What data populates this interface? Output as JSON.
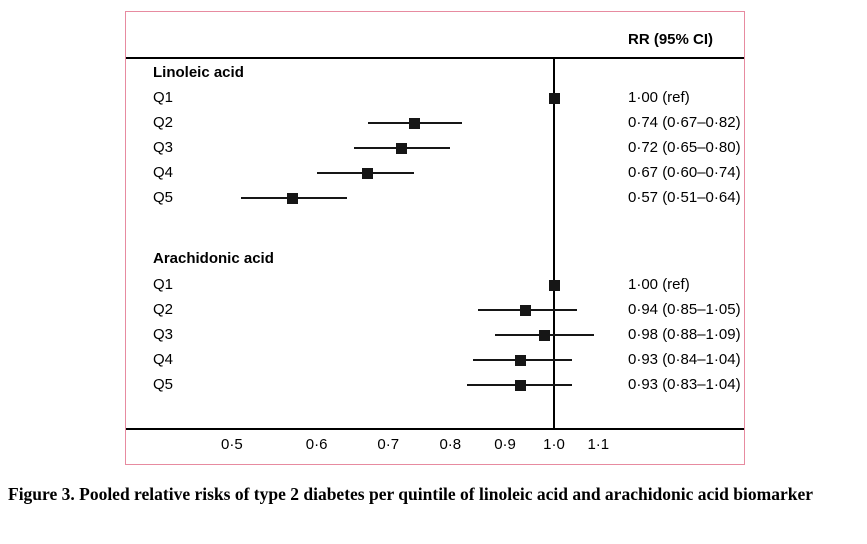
{
  "figure": {
    "header": "RR (95% CI)",
    "caption": "Figure 3. Pooled relative risks of type 2 diabetes per quintile of linoleic acid and arachidonic acid biomarker"
  },
  "colors": {
    "box_border": "#e78ba0",
    "marker": "#161616",
    "line": "#000000"
  },
  "chart_data": {
    "type": "forest",
    "x_scale": "log",
    "column_header": "RR (95% CI)",
    "x_axis": {
      "reference_line": 1.0,
      "ticks": [
        {
          "value": 0.5,
          "label": "0·5"
        },
        {
          "value": 0.6,
          "label": "0·6"
        },
        {
          "value": 0.7,
          "label": "0·7"
        },
        {
          "value": 0.8,
          "label": "0·8"
        },
        {
          "value": 0.9,
          "label": "0·9"
        },
        {
          "value": 1.0,
          "label": "1·0"
        },
        {
          "value": 1.1,
          "label": "1·1"
        }
      ]
    },
    "groups": [
      {
        "label": "Linoleic acid",
        "rows": [
          {
            "label": "Q1",
            "rr": 1.0,
            "ci_low": null,
            "ci_high": null,
            "display": "1·00 (ref)"
          },
          {
            "label": "Q2",
            "rr": 0.74,
            "ci_low": 0.67,
            "ci_high": 0.82,
            "display": "0·74 (0·67–0·82)"
          },
          {
            "label": "Q3",
            "rr": 0.72,
            "ci_low": 0.65,
            "ci_high": 0.8,
            "display": "0·72 (0·65–0·80)"
          },
          {
            "label": "Q4",
            "rr": 0.67,
            "ci_low": 0.6,
            "ci_high": 0.74,
            "display": "0·67 (0·60–0·74)"
          },
          {
            "label": "Q5",
            "rr": 0.57,
            "ci_low": 0.51,
            "ci_high": 0.64,
            "display": "0·57 (0·51–0·64)"
          }
        ]
      },
      {
        "label": "Arachidonic acid",
        "rows": [
          {
            "label": "Q1",
            "rr": 1.0,
            "ci_low": null,
            "ci_high": null,
            "display": "1·00 (ref)"
          },
          {
            "label": "Q2",
            "rr": 0.94,
            "ci_low": 0.85,
            "ci_high": 1.05,
            "display": "0·94 (0·85–1·05)"
          },
          {
            "label": "Q3",
            "rr": 0.98,
            "ci_low": 0.88,
            "ci_high": 1.09,
            "display": "0·98 (0·88–1·09)"
          },
          {
            "label": "Q4",
            "rr": 0.93,
            "ci_low": 0.84,
            "ci_high": 1.04,
            "display": "0·93 (0·84–1·04)"
          },
          {
            "label": "Q5",
            "rr": 0.93,
            "ci_low": 0.83,
            "ci_high": 1.04,
            "display": "0·93 (0·83–1·04)"
          }
        ]
      }
    ]
  }
}
